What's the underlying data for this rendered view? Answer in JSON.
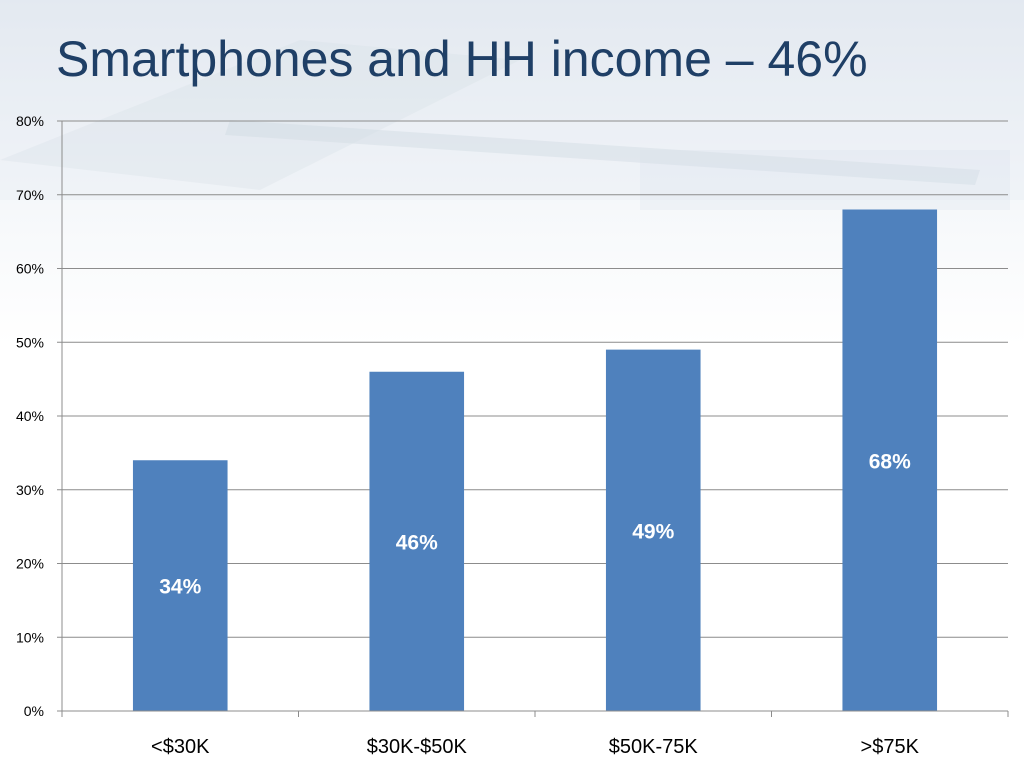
{
  "slide": {
    "title": "Smartphones and HH income – 46%"
  },
  "chart_data": {
    "type": "bar",
    "categories": [
      "<$30K",
      "$30K-$50K",
      "$50K-75K",
      ">$75K"
    ],
    "values": [
      34,
      46,
      49,
      68
    ],
    "data_labels": [
      "34%",
      "46%",
      "49%",
      "68%"
    ],
    "ylim": [
      0,
      80
    ],
    "yticks": [
      0,
      10,
      20,
      30,
      40,
      50,
      60,
      70,
      80
    ],
    "ytick_labels": [
      "0%",
      "10%",
      "20%",
      "30%",
      "40%",
      "50%",
      "60%",
      "70%",
      "80%"
    ],
    "grid": true,
    "legend": "none",
    "bar_color": "#4f81bd",
    "label_color": "#ffffff"
  }
}
